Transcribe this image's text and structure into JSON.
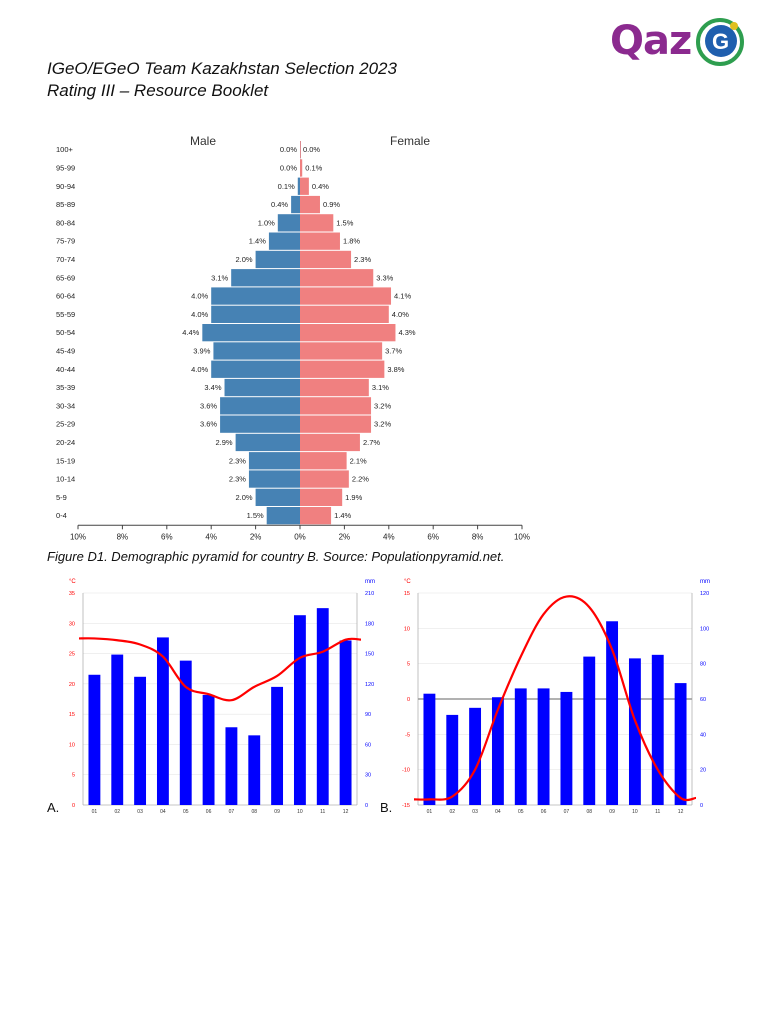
{
  "header": {
    "line1": "IGeO/EGeO Team Kazakhstan Selection 2023",
    "line2": "Rating III – Resource Booklet",
    "logo_text": "Qaz",
    "logo_letter": "G"
  },
  "caption": "Figure D1. Demographic pyramid for country B. Source: Populationpyramid.net.",
  "colors": {
    "male": "#4682b4",
    "female": "#f08080",
    "bars": "#0000ff",
    "line": "#ff0000",
    "logo": "#8b2a8f",
    "logo_ring": "#2e9e4f"
  },
  "chart_data": [
    {
      "type": "bar",
      "subtype": "population-pyramid",
      "male_label": "Male",
      "female_label": "Female",
      "age_groups": [
        "100+",
        "95-99",
        "90-94",
        "85-89",
        "80-84",
        "75-79",
        "70-74",
        "65-69",
        "60-64",
        "55-59",
        "50-54",
        "45-49",
        "40-44",
        "35-39",
        "30-34",
        "25-29",
        "20-24",
        "15-19",
        "10-14",
        "5-9",
        "0-4"
      ],
      "male": [
        0.0,
        0.0,
        0.1,
        0.4,
        1.0,
        1.4,
        2.0,
        3.1,
        4.0,
        4.0,
        4.4,
        3.9,
        4.0,
        3.4,
        3.6,
        3.6,
        2.9,
        2.3,
        2.3,
        2.0,
        1.5
      ],
      "female": [
        0.0,
        0.1,
        0.4,
        0.9,
        1.5,
        1.8,
        2.3,
        3.3,
        4.1,
        4.0,
        4.3,
        3.7,
        3.8,
        3.1,
        3.2,
        3.2,
        2.7,
        2.1,
        2.2,
        1.9,
        1.4
      ],
      "x_ticks": [
        "10%",
        "8%",
        "6%",
        "4%",
        "2%",
        "0%",
        "2%",
        "4%",
        "6%",
        "8%",
        "10%"
      ],
      "xlim": [
        -10,
        10
      ]
    },
    {
      "type": "bar+line",
      "label": "A.",
      "months": [
        "01",
        "02",
        "03",
        "04",
        "05",
        "06",
        "07",
        "08",
        "09",
        "10",
        "11",
        "12"
      ],
      "temp_unit": "°C",
      "precip_unit": "mm",
      "temp_ticks": [
        "0",
        "5",
        "10",
        "15",
        "20",
        "25",
        "30",
        "35"
      ],
      "precip_ticks": [
        "0",
        "30",
        "60",
        "90",
        "120",
        "150",
        "180",
        "210"
      ],
      "temp_range": [
        0,
        35
      ],
      "precip_range": [
        0,
        210
      ],
      "precipitation": [
        129,
        149,
        127,
        166,
        143,
        109,
        77,
        69,
        117,
        188,
        195,
        163
      ],
      "temperature": [
        27.5,
        27.2,
        26.5,
        24.5,
        19.5,
        18.3,
        17.3,
        19.5,
        21.3,
        24.3,
        25.3,
        27.3
      ]
    },
    {
      "type": "bar+line",
      "label": "B.",
      "months": [
        "01",
        "02",
        "03",
        "04",
        "05",
        "06",
        "07",
        "08",
        "09",
        "10",
        "11",
        "12"
      ],
      "temp_unit": "°C",
      "precip_unit": "mm",
      "temp_ticks": [
        "-15",
        "-10",
        "-5",
        "0",
        "5",
        "10",
        "15"
      ],
      "precip_ticks": [
        "0",
        "20",
        "40",
        "60",
        "80",
        "100",
        "120"
      ],
      "temp_range": [
        -15,
        15
      ],
      "precip_range": [
        0,
        120
      ],
      "precipitation": [
        63,
        51,
        55,
        61,
        66,
        66,
        64,
        84,
        104,
        83,
        85,
        69
      ],
      "temperature": [
        -14.2,
        -13.8,
        -10,
        -1.5,
        6,
        12,
        14.5,
        13,
        7,
        -3,
        -10,
        -14
      ]
    }
  ]
}
